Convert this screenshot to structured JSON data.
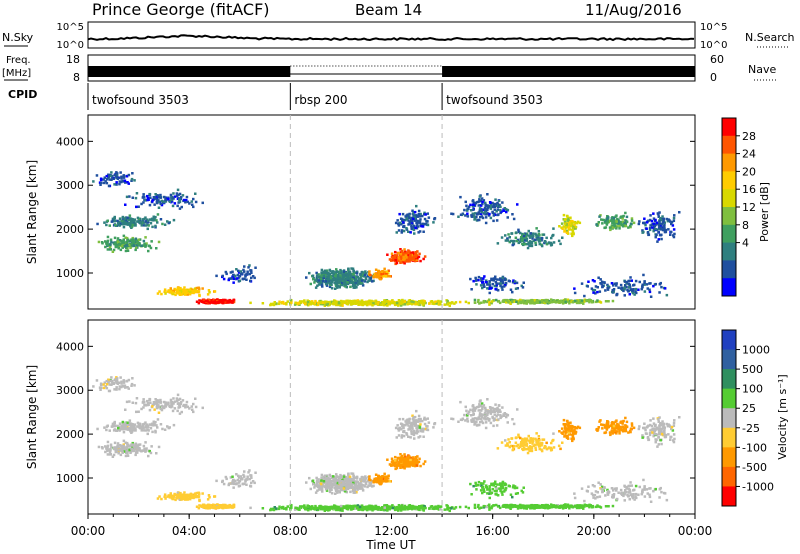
{
  "header": {
    "station": "Prince George (fitACF)",
    "beam": "Beam 14",
    "date": "11/Aug/2016"
  },
  "top_panels": {
    "nsky_label": "N.Sky",
    "nsky_ticks": [
      "10^5",
      "10^0"
    ],
    "nsearch_label": "N.Search",
    "freq_label_1": "Freq.",
    "freq_label_2": "[MHz]",
    "freq_ticks": [
      "18",
      "8"
    ],
    "nave_label": "Nave",
    "nave_ticks": [
      "60",
      "0"
    ],
    "cpid_label": "CPID"
  },
  "cpid_segments": [
    {
      "name": "twofsound 3503",
      "start_hour": 0
    },
    {
      "name": "rbsp 200",
      "start_hour": 8
    },
    {
      "name": "twofsound 3503",
      "start_hour": 14
    }
  ],
  "colorbars": {
    "power": {
      "label": "Power [dB]",
      "ticks": [
        "28",
        "24",
        "20",
        "16",
        "12",
        "8",
        "4"
      ],
      "colors": [
        "#ff0000",
        "#ff5500",
        "#ff9900",
        "#ffcc00",
        "#d8d800",
        "#7fbf3f",
        "#3f9f5f",
        "#2f7f7f",
        "#1f4f9f",
        "#0000ff"
      ]
    },
    "velocity": {
      "label": "Velocity [m s⁻¹]",
      "ticks": [
        "1000",
        "500",
        "100",
        "25",
        "-25",
        "-100",
        "-500",
        "-1000"
      ],
      "colors": [
        "#2040c0",
        "#3060a0",
        "#2f8f5f",
        "#55cc33",
        "#bbbbbb",
        "#ffcc33",
        "#ff9900",
        "#ff6600",
        "#ff0000"
      ]
    }
  },
  "chart_data": {
    "type": "heatmap",
    "xlabel": "Time UT",
    "ylabel": "Slant Range [km]",
    "x_range_hours": [
      0,
      24
    ],
    "x_ticks": [
      "00:00",
      "04:00",
      "08:00",
      "12:00",
      "16:00",
      "20:00",
      "00:00"
    ],
    "y_range_km": [
      180,
      4600
    ],
    "y_ticks": [
      1000,
      2000,
      3000,
      4000
    ],
    "cpid_change_hours": [
      8,
      14
    ],
    "nave_high_periods": [
      [
        0,
        8
      ],
      [
        14,
        24
      ]
    ],
    "nave_low_periods": [
      [
        8,
        14
      ]
    ],
    "frequency_mhz_approx": 11
  }
}
